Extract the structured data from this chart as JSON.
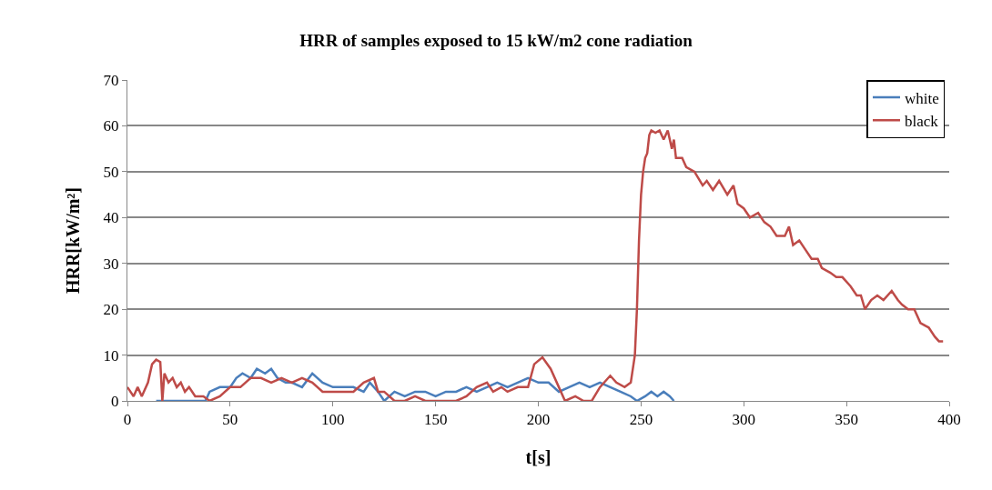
{
  "chart_data": {
    "type": "line",
    "title": "HRR of samples exposed to 15 kW/m2 cone radiation",
    "xlabel": "t[s]",
    "ylabel": "HRR[kW/m²]",
    "xlim": [
      0,
      400
    ],
    "xticks": [
      0,
      50,
      100,
      150,
      200,
      250,
      300,
      350,
      400
    ],
    "ylim": [
      0,
      70
    ],
    "yticks": [
      0,
      10,
      20,
      30,
      40,
      50,
      60,
      70
    ],
    "grid": "y",
    "legend": "top right",
    "marker": "none",
    "line_style": "solid",
    "series": [
      {
        "name": "white",
        "color": "#4a7ebb",
        "x": [
          14,
          20,
          25,
          30,
          38,
          40,
          45,
          50,
          53,
          56,
          60,
          63,
          67,
          70,
          73,
          77,
          80,
          85,
          90,
          95,
          100,
          105,
          110,
          115,
          118,
          122,
          125,
          130,
          135,
          140,
          145,
          150,
          155,
          160,
          165,
          170,
          175,
          180,
          185,
          190,
          195,
          200,
          205,
          210,
          215,
          220,
          225,
          230,
          235,
          240,
          245,
          248,
          252,
          255,
          258,
          261,
          264,
          266
        ],
        "values": [
          0,
          0,
          0,
          0,
          0,
          2,
          3,
          3,
          5,
          6,
          5,
          7,
          6,
          7,
          5,
          4,
          4,
          3,
          6,
          4,
          3,
          3,
          3,
          2,
          4,
          2,
          0,
          2,
          1,
          2,
          2,
          1,
          2,
          2,
          3,
          2,
          3,
          4,
          3,
          4,
          5,
          4,
          4,
          2,
          3,
          4,
          3,
          4,
          3,
          2,
          1,
          0,
          1,
          2,
          1,
          2,
          1,
          0
        ]
      },
      {
        "name": "black",
        "color": "#be4b48",
        "x": [
          0,
          3,
          5,
          7,
          10,
          12,
          14,
          16,
          17,
          18,
          20,
          22,
          24,
          26,
          28,
          30,
          33,
          37,
          40,
          45,
          50,
          55,
          60,
          65,
          70,
          75,
          80,
          85,
          90,
          95,
          100,
          110,
          115,
          120,
          122,
          125,
          130,
          135,
          140,
          145,
          150,
          160,
          165,
          170,
          175,
          178,
          182,
          185,
          190,
          195,
          198,
          202,
          206,
          210,
          213,
          218,
          222,
          226,
          230,
          235,
          238,
          242,
          245,
          247,
          248,
          249,
          250,
          251,
          252,
          253,
          254,
          255,
          257,
          259,
          261,
          263,
          265,
          266,
          267,
          270,
          272,
          276,
          280,
          282,
          285,
          288,
          292,
          295,
          297,
          300,
          303,
          307,
          310,
          313,
          316,
          320,
          322,
          324,
          327,
          330,
          333,
          336,
          338,
          342,
          345,
          348,
          352,
          355,
          357,
          359,
          362,
          365,
          368,
          372,
          375,
          377,
          380,
          383,
          386,
          390,
          393,
          395,
          397
        ],
        "values": [
          3,
          1,
          3,
          1,
          4,
          8,
          9,
          8.5,
          0,
          6,
          4,
          5,
          3,
          4,
          2,
          3,
          1,
          1,
          0,
          1,
          3,
          3,
          5,
          5,
          4,
          5,
          4,
          5,
          4,
          2,
          2,
          2,
          4,
          5,
          2,
          2,
          0,
          0,
          1,
          0,
          0,
          0,
          1,
          3,
          4,
          2,
          3,
          2,
          3,
          3,
          8,
          9.5,
          7,
          3,
          0,
          1,
          0,
          0,
          3,
          5.5,
          4,
          3,
          4,
          10,
          20,
          35,
          45,
          50,
          53,
          54,
          58,
          59,
          58.5,
          59,
          57,
          59,
          55,
          57,
          53,
          53,
          51,
          50,
          47,
          48,
          46,
          48,
          45,
          47,
          43,
          42,
          40,
          41,
          39,
          38,
          36,
          36,
          38,
          34,
          35,
          33,
          31,
          31,
          29,
          28,
          27,
          27,
          25,
          23,
          23,
          20,
          22,
          23,
          22,
          24,
          22,
          21,
          20,
          20,
          17,
          16,
          14,
          13,
          13
        ]
      }
    ]
  }
}
